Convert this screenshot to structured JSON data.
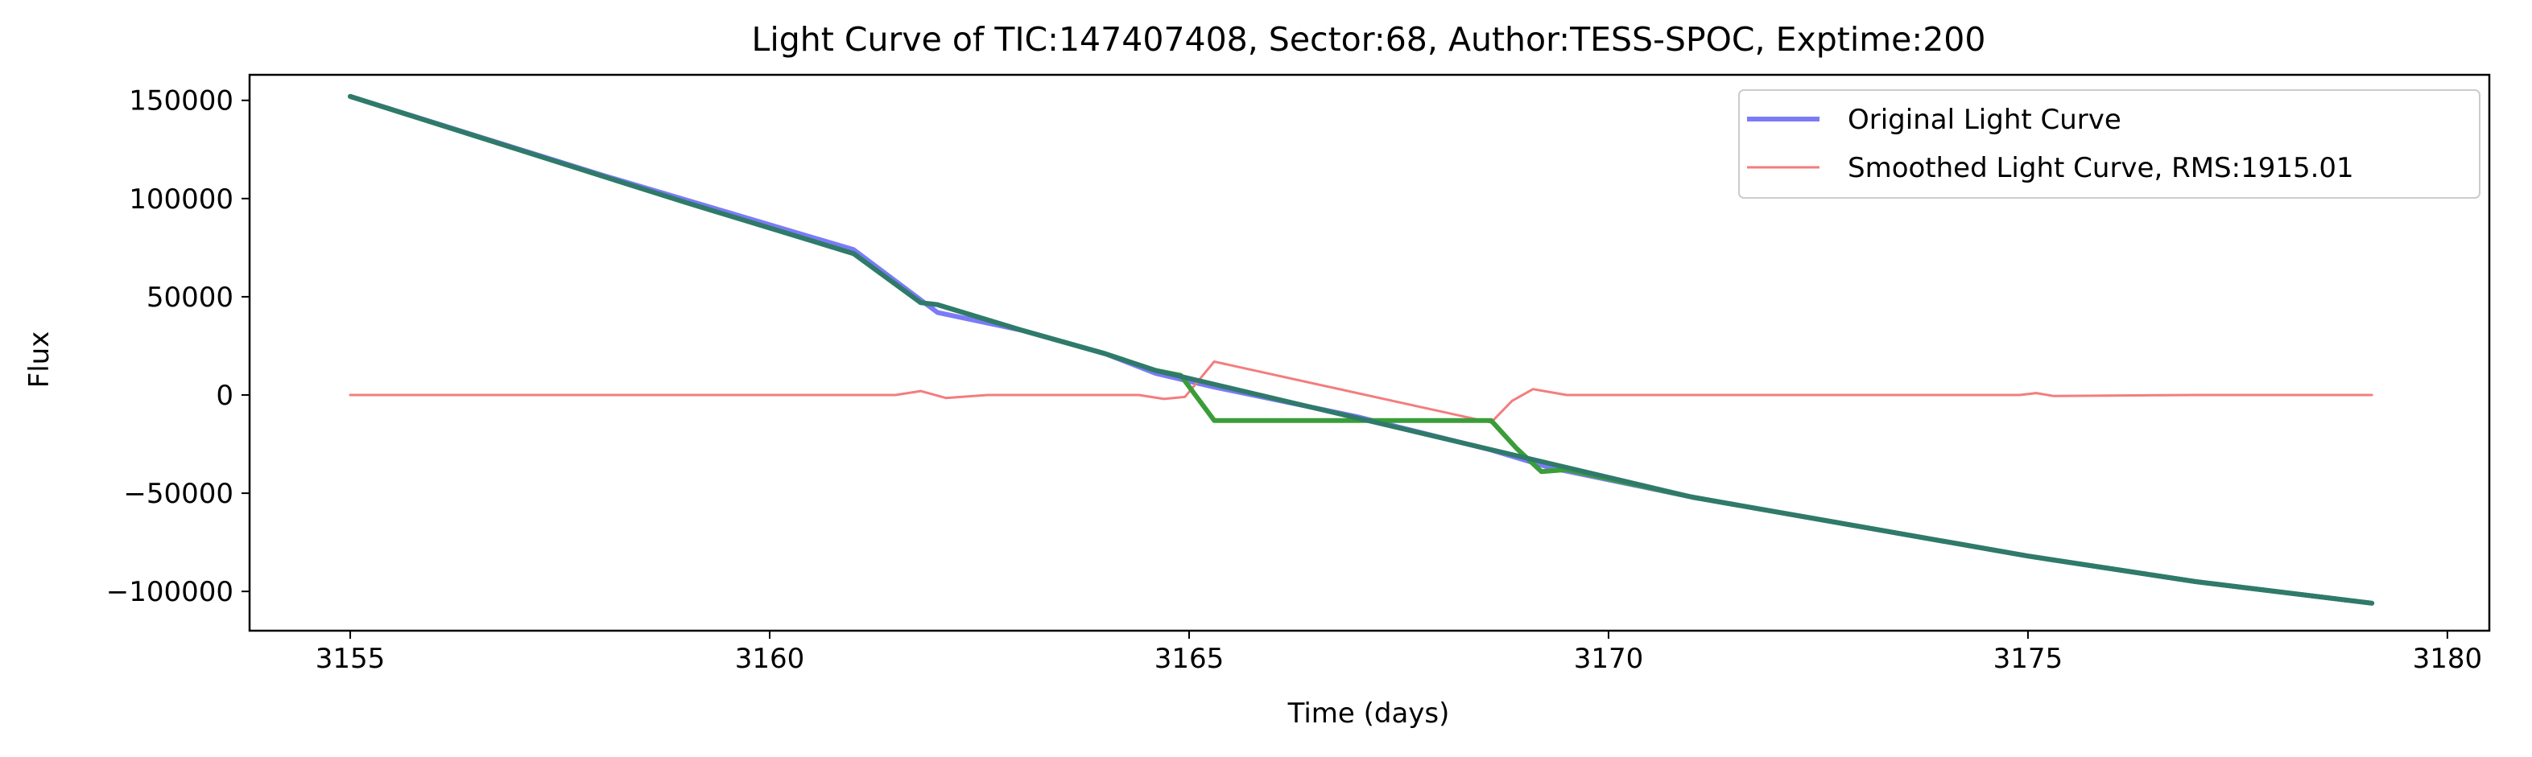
{
  "chart_data": {
    "type": "line",
    "title": "Light Curve of TIC:147407408, Sector:68, Author:TESS-SPOC, Exptime:200",
    "xlabel": "Time (days)",
    "ylabel": "Flux",
    "xlim": [
      3153.8,
      3180.5
    ],
    "ylim": [
      -120000,
      163000
    ],
    "xticks": [
      3155,
      3160,
      3165,
      3170,
      3175,
      3180
    ],
    "xtick_labels": [
      "3155",
      "3160",
      "3165",
      "3170",
      "3175",
      "3180"
    ],
    "yticks": [
      150000,
      100000,
      50000,
      0,
      -50000,
      -100000
    ],
    "ytick_labels": [
      "150000",
      "100000",
      "50000",
      "0",
      "−50000",
      "−100000"
    ],
    "grid": false,
    "legend_position": "top-right",
    "legend": [
      {
        "label": "Original Light Curve",
        "color": "#7b7bf7"
      },
      {
        "label": "Smoothed Light Curve, RMS:1915.01",
        "color": "#f47d7d"
      }
    ],
    "series": [
      {
        "name": "Original Light Curve",
        "color": "#7b7bf7",
        "points": [
          [
            3155.0,
            152000
          ],
          [
            3156.5,
            132000
          ],
          [
            3158.0,
            112000
          ],
          [
            3159.5,
            93000
          ],
          [
            3161.0,
            74000
          ],
          [
            3162.0,
            42000
          ],
          [
            3163.0,
            33000
          ],
          [
            3164.0,
            21000
          ],
          [
            3164.6,
            11000
          ],
          [
            3165.3,
            4000
          ],
          [
            3167.0,
            -11000
          ],
          [
            3168.6,
            -28000
          ],
          [
            3169.3,
            -37000
          ],
          [
            3171.0,
            -52000
          ],
          [
            3173.0,
            -67000
          ],
          [
            3175.0,
            -82000
          ],
          [
            3177.0,
            -95000
          ],
          [
            3179.1,
            -106000
          ]
        ]
      },
      {
        "name": "Smoothed Light Curve, RMS:1915.01",
        "color": "#f47d7d",
        "points": [
          [
            3155.0,
            0
          ],
          [
            3158.0,
            0
          ],
          [
            3161.5,
            0
          ],
          [
            3161.8,
            2000
          ],
          [
            3162.1,
            -1500
          ],
          [
            3162.6,
            0
          ],
          [
            3164.4,
            0
          ],
          [
            3164.7,
            -2000
          ],
          [
            3164.95,
            -1000
          ],
          [
            3165.3,
            17000
          ],
          [
            3168.6,
            -14000
          ],
          [
            3168.85,
            -3000
          ],
          [
            3169.1,
            3000
          ],
          [
            3169.5,
            0
          ],
          [
            3172.0,
            0
          ],
          [
            3174.9,
            0
          ],
          [
            3175.1,
            1000
          ],
          [
            3175.3,
            -500
          ],
          [
            3177.0,
            0
          ],
          [
            3179.1,
            0
          ]
        ]
      },
      {
        "color": "#3a9d3a",
        "points": [
          [
            3155.0,
            152000
          ],
          [
            3157.0,
            125000
          ],
          [
            3159.0,
            98000
          ],
          [
            3161.0,
            72000
          ],
          [
            3161.8,
            47000
          ],
          [
            3162.0,
            46000
          ],
          [
            3163.0,
            33000
          ],
          [
            3164.0,
            21000
          ],
          [
            3164.6,
            12500
          ],
          [
            3164.9,
            10000
          ],
          [
            3165.3,
            -13000
          ],
          [
            3168.6,
            -13000
          ],
          [
            3168.9,
            -27000
          ],
          [
            3169.2,
            -39000
          ],
          [
            3169.5,
            -38000
          ],
          [
            3171.0,
            -52000
          ],
          [
            3173.0,
            -67000
          ],
          [
            3175.0,
            -82000
          ],
          [
            3177.0,
            -95000
          ],
          [
            3179.1,
            -106000
          ]
        ]
      },
      {
        "color": "#2f7a6a",
        "points": [
          [
            3155.0,
            152000
          ],
          [
            3157.0,
            125000
          ],
          [
            3159.0,
            98000
          ],
          [
            3161.0,
            72000
          ],
          [
            3161.8,
            47000
          ],
          [
            3162.0,
            46000
          ],
          [
            3163.0,
            33000
          ],
          [
            3164.0,
            21000
          ],
          [
            3164.6,
            12500
          ],
          [
            3171.0,
            -52000
          ],
          [
            3173.0,
            -67000
          ],
          [
            3175.0,
            -82000
          ],
          [
            3177.0,
            -95000
          ],
          [
            3179.1,
            -106000
          ]
        ]
      }
    ]
  }
}
